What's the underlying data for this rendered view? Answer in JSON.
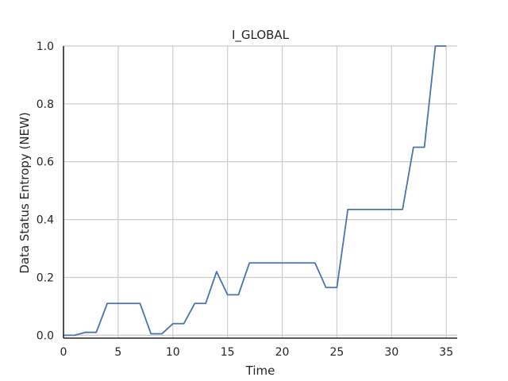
{
  "chart_data": {
    "type": "line",
    "title": "I_GLOBAL",
    "xlabel": "Time",
    "ylabel": "Data Status Entropy (NEW)",
    "xlim": [
      0,
      36
    ],
    "ylim": [
      -0.01,
      1.0
    ],
    "xticks": [
      0,
      5,
      10,
      15,
      20,
      25,
      30,
      35
    ],
    "yticks": [
      0.0,
      0.2,
      0.4,
      0.6,
      0.8,
      1.0
    ],
    "xtick_labels": [
      "0",
      "5",
      "10",
      "15",
      "20",
      "25",
      "30",
      "35"
    ],
    "ytick_labels": [
      "0.0",
      "0.2",
      "0.4",
      "0.6",
      "0.8",
      "1.0"
    ],
    "grid": true,
    "series": [
      {
        "color": "#4c72b0",
        "x": [
          0,
          1,
          2,
          3,
          4,
          5,
          6,
          7,
          8,
          9,
          10,
          11,
          12,
          13,
          14,
          15,
          16,
          17,
          18,
          19,
          20,
          21,
          22,
          23,
          24,
          25,
          26,
          27,
          28,
          29,
          30,
          31,
          32,
          33,
          34,
          35
        ],
        "y": [
          0.0,
          0.0,
          0.01,
          0.01,
          0.11,
          0.11,
          0.11,
          0.11,
          0.005,
          0.005,
          0.04,
          0.04,
          0.11,
          0.11,
          0.22,
          0.14,
          0.14,
          0.25,
          0.25,
          0.25,
          0.25,
          0.25,
          0.25,
          0.25,
          0.165,
          0.165,
          0.435,
          0.435,
          0.435,
          0.435,
          0.435,
          0.435,
          0.65,
          0.65,
          1.0,
          1.0
        ]
      }
    ]
  }
}
